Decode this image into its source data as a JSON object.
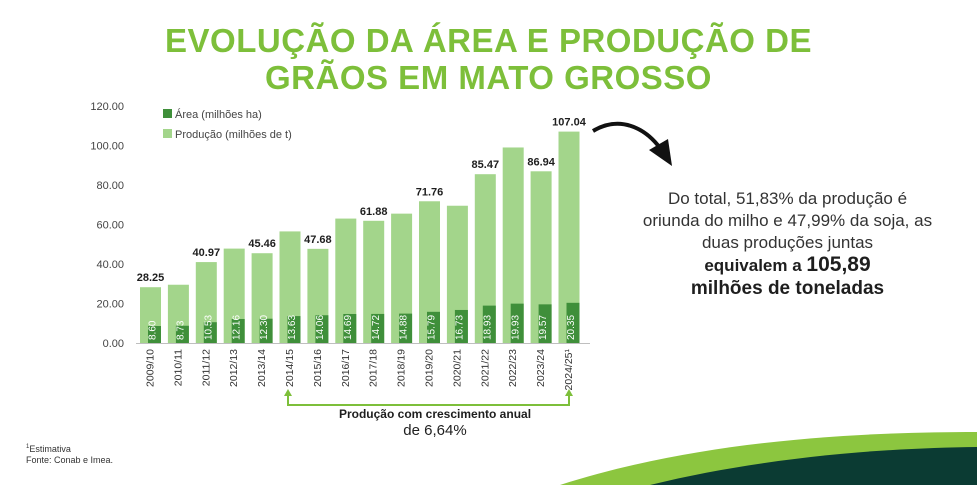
{
  "title_line1": "EVOLUÇÃO DA ÁREA E PRODUÇÃO DE",
  "title_line2": "GRÃOS EM MATO GROSSO",
  "colors": {
    "area": "#3f8f3a",
    "producao": "#a3d58b",
    "title": "#7dbf3a",
    "growth_arrow": "#7dbf3a",
    "wave_dark": "#0b3b33",
    "wave_green": "#8cc63f"
  },
  "chart_data": {
    "type": "bar",
    "categories": [
      "2009/10",
      "2010/11",
      "2011/12",
      "2012/13",
      "2013/14",
      "2014/15",
      "2015/16",
      "2016/17",
      "2017/18",
      "2018/19",
      "2019/20",
      "2020/21",
      "2021/22",
      "2022/23",
      "2023/24",
      "2024/25¹"
    ],
    "series": [
      {
        "name": "Área (milhões ha)",
        "values": [
          8.6,
          8.73,
          10.53,
          12.16,
          12.3,
          13.63,
          14.06,
          14.69,
          14.72,
          14.88,
          15.79,
          16.73,
          18.93,
          19.93,
          19.57,
          20.35
        ],
        "labels": [
          "8.60",
          "8.73",
          "10.53",
          "12.16",
          "12.30",
          "13.63",
          "14.06",
          "14.69",
          "14.72",
          "14.88",
          "15.79",
          "16.73",
          "18.93",
          "19.93",
          "19.57",
          "20.35"
        ]
      },
      {
        "name": "Produção (milhões de t)",
        "values": [
          28.25,
          29.5,
          40.97,
          47.8,
          45.46,
          56.5,
          47.68,
          63.0,
          61.88,
          65.5,
          71.76,
          69.5,
          85.47,
          99.0,
          86.94,
          107.04
        ],
        "labels": [
          "28.25",
          "",
          "40.97",
          "",
          "45.46",
          "",
          "47.68",
          "",
          "61.88",
          "",
          "71.76",
          "",
          "85.47",
          "",
          "86.94",
          "107.04"
        ]
      }
    ],
    "y_ticks": [
      "0.00",
      "20.00",
      "40.00",
      "60.00",
      "80.00",
      "100.00",
      "120.00"
    ],
    "ylim": [
      0,
      120
    ],
    "legend_position": "top-left",
    "grid": false
  },
  "side_text": {
    "line1": "Do total, 51,83% da produção é oriunda do milho e 47,99% da soja, as duas produções juntas",
    "bold_prefix": "equivalem a",
    "big_value": "105,89",
    "bold_suffix": "milhões de toneladas"
  },
  "growth": {
    "label": "Produção com crescimento anual",
    "value": "de 6,64%"
  },
  "footnote": {
    "marker": "1",
    "estimate": "Estimativa",
    "source": "Fonte: Conab e Imea."
  }
}
